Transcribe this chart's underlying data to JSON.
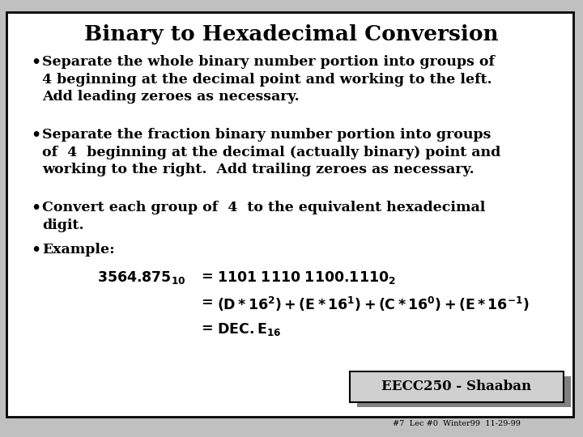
{
  "title": "Binary to Hexadecimal Conversion",
  "bg_color": "#c0c0c0",
  "slide_bg": "#ffffff",
  "border_color": "#000000",
  "title_fontsize": 19,
  "body_fontsize": 12.5,
  "footer_text": "EECC250 - Shaaban",
  "footer_small": "#7  Lec #0  Winter99  11-29-99",
  "footer_bg": "#d0d0d0",
  "footer_border": "#000000"
}
